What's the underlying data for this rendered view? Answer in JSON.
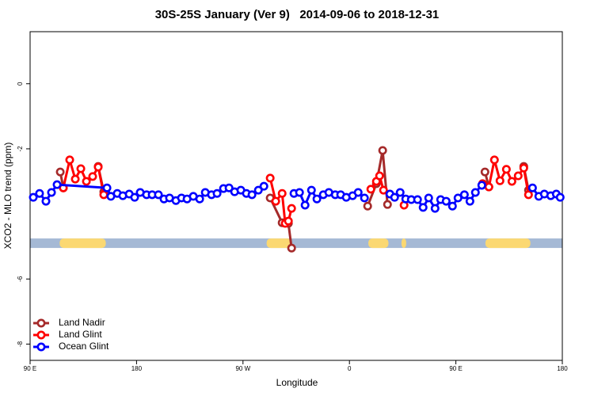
{
  "chart_data": {
    "type": "line",
    "title": "30S-25S January (Ver 9)   2014-09-06 to 2018-12-31",
    "x_label": "Longitude",
    "y_label": "XCO2 - MLO trend (ppm)",
    "xlim": [
      90,
      540
    ],
    "ylim": [
      -8.5,
      1.6
    ],
    "xticks": [
      {
        "value": 90,
        "label": "90 E"
      },
      {
        "value": 180,
        "label": "180"
      },
      {
        "value": 270,
        "label": "90 W"
      },
      {
        "value": 360,
        "label": "0"
      },
      {
        "value": 450,
        "label": "90 E"
      },
      {
        "value": 540,
        "label": "180"
      }
    ],
    "yticks": [
      0,
      -2,
      -6,
      -8
    ],
    "legend": "bottom-left",
    "land_mask": {
      "y": -4.9,
      "ocean_color": "#a5b9d5",
      "land_color": "#fbd872",
      "land": [
        [
          115,
          154
        ],
        [
          290,
          311
        ],
        [
          376,
          393
        ],
        [
          404,
          408
        ],
        [
          475,
          513
        ]
      ]
    },
    "series": [
      {
        "name": "Land Nadir",
        "color": "#a52a2a",
        "x": [
          115.5,
          118.1,
          null,
          147.6,
          152.3,
          null,
          293.0,
          303.1,
          308.4,
          311.1,
          null,
          375.4,
          382.8,
          388.1,
          392.2,
          null,
          474.6,
          477.9,
          null,
          507.4,
          511.4
        ],
        "values": [
          -2.71,
          -3.2,
          null,
          -2.54,
          -3.32,
          null,
          -3.51,
          -4.27,
          -4.29,
          -5.05,
          null,
          -3.76,
          -3.07,
          -2.05,
          -3.71,
          null,
          -2.71,
          -3.17,
          null,
          -2.54,
          -3.27
        ]
      },
      {
        "name": "Land Glint",
        "color": "#ff0000",
        "x": [
          118.1,
          123.5,
          128.2,
          132.9,
          137.6,
          142.9,
          147.6,
          152.3,
          null,
          293.0,
          297.7,
          303.1,
          305.7,
          308.4,
          311.1,
          null,
          378.1,
          382.8,
          385.5,
          388.8,
          null,
          406.2,
          null,
          472.6,
          477.9,
          482.6,
          487.3,
          492.7,
          497.4,
          502.7,
          507.4,
          511.4
        ],
        "values": [
          -3.2,
          -2.34,
          -2.93,
          -2.61,
          -3.0,
          -2.85,
          -2.56,
          -3.41,
          null,
          -2.9,
          -3.61,
          -3.37,
          -4.29,
          -4.22,
          -3.83,
          null,
          -3.24,
          -3.0,
          -2.83,
          -3.27,
          null,
          -3.73,
          null,
          -3.07,
          -3.17,
          -2.34,
          -2.98,
          -2.63,
          -3.0,
          -2.83,
          -2.59,
          -3.41
        ]
      },
      {
        "name": "Ocean Glint",
        "color": "#0000ff",
        "x": [
          92.7,
          98.0,
          103.4,
          108.1,
          112.8,
          155.0,
          158.3,
          163.7,
          168.4,
          173.8,
          178.4,
          183.1,
          188.5,
          193.2,
          198.5,
          203.2,
          207.9,
          213.3,
          218.0,
          222.7,
          228.0,
          233.4,
          238.1,
          243.4,
          248.1,
          253.5,
          258.2,
          262.9,
          268.2,
          272.9,
          277.6,
          283.0,
          287.7,
          null,
          313.1,
          317.8,
          322.5,
          327.9,
          332.5,
          337.9,
          342.6,
          348.0,
          352.6,
          357.3,
          362.7,
          367.4,
          372.7,
          null,
          394.2,
          398.2,
          402.9,
          407.6,
          412.3,
          417.6,
          422.3,
          427.0,
          432.4,
          437.1,
          441.8,
          447.1,
          451.8,
          457.2,
          461.9,
          466.5,
          471.9,
          null,
          514.8,
          520.1,
          524.8,
          530.2,
          534.9,
          538.2
        ],
        "values": [
          -3.49,
          -3.37,
          -3.61,
          -3.34,
          -3.1,
          -3.2,
          -3.46,
          -3.37,
          -3.44,
          -3.39,
          -3.49,
          -3.34,
          -3.41,
          -3.41,
          -3.41,
          -3.54,
          -3.51,
          -3.59,
          -3.51,
          -3.54,
          -3.46,
          -3.54,
          -3.34,
          -3.41,
          -3.37,
          -3.22,
          -3.2,
          -3.32,
          -3.27,
          -3.37,
          -3.41,
          -3.27,
          -3.15,
          null,
          -3.37,
          -3.34,
          -3.73,
          -3.27,
          -3.54,
          -3.41,
          -3.34,
          -3.41,
          -3.41,
          -3.49,
          -3.44,
          -3.34,
          -3.51,
          null,
          -3.39,
          -3.49,
          -3.34,
          -3.54,
          -3.56,
          -3.56,
          -3.8,
          -3.51,
          -3.83,
          -3.56,
          -3.61,
          -3.76,
          -3.51,
          -3.41,
          -3.61,
          -3.34,
          -3.12,
          null,
          -3.2,
          -3.46,
          -3.39,
          -3.44,
          -3.39,
          -3.49
        ]
      }
    ]
  }
}
